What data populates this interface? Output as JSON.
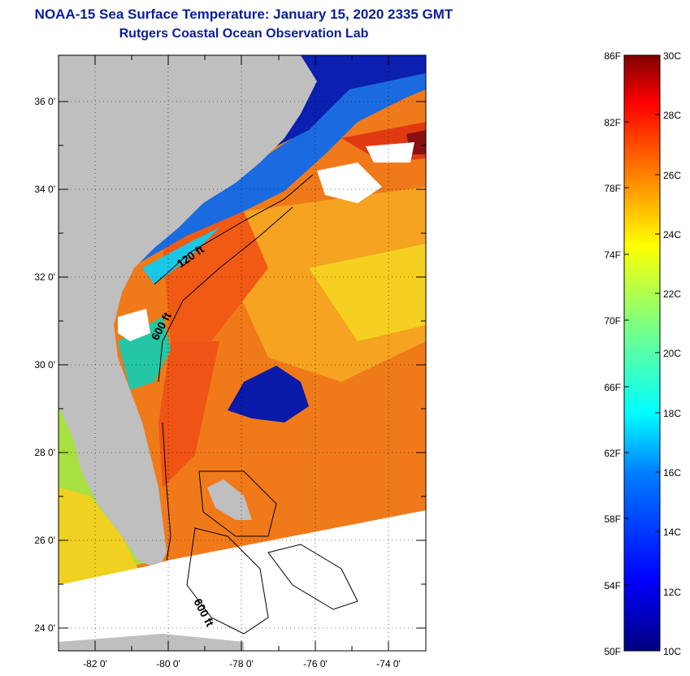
{
  "title": "NOAA-15 Sea Surface Temperature:  January 15, 2020 2335 GMT",
  "subtitle": "Rutgers Coastal Ocean Observation Lab",
  "map": {
    "lat_range": [
      23,
      37
    ],
    "lon_range": [
      -83,
      -73
    ],
    "lat_ticks": [
      "36 0'",
      "34 0'",
      "32 0'",
      "30 0'",
      "28 0'",
      "26 0'",
      "24 0'"
    ],
    "lon_ticks": [
      "-82 0'",
      "-80 0'",
      "-78 0'",
      "-76 0'",
      "-74 0'"
    ],
    "contour_labels": [
      "120 ft",
      "600 ft",
      "600 ft"
    ],
    "colors": {
      "land": "#bfbfbf",
      "no_data": "#ffffff",
      "cloud": "#ffffff"
    }
  },
  "colorbar": {
    "fahrenheit_labels": [
      "86F",
      "82F",
      "78F",
      "74F",
      "70F",
      "66F",
      "62F",
      "58F",
      "54F",
      "50F"
    ],
    "celsius_labels": [
      "30C",
      "28C",
      "26C",
      "24C",
      "22C",
      "20C",
      "18C",
      "16C",
      "14C",
      "12C",
      "10C"
    ],
    "range_c": [
      10,
      30
    ],
    "colormap": [
      "#00007f",
      "#0000ff",
      "#007fff",
      "#00ffff",
      "#7fff7f",
      "#ffff00",
      "#ff7f00",
      "#ff0000",
      "#7f0000"
    ]
  }
}
